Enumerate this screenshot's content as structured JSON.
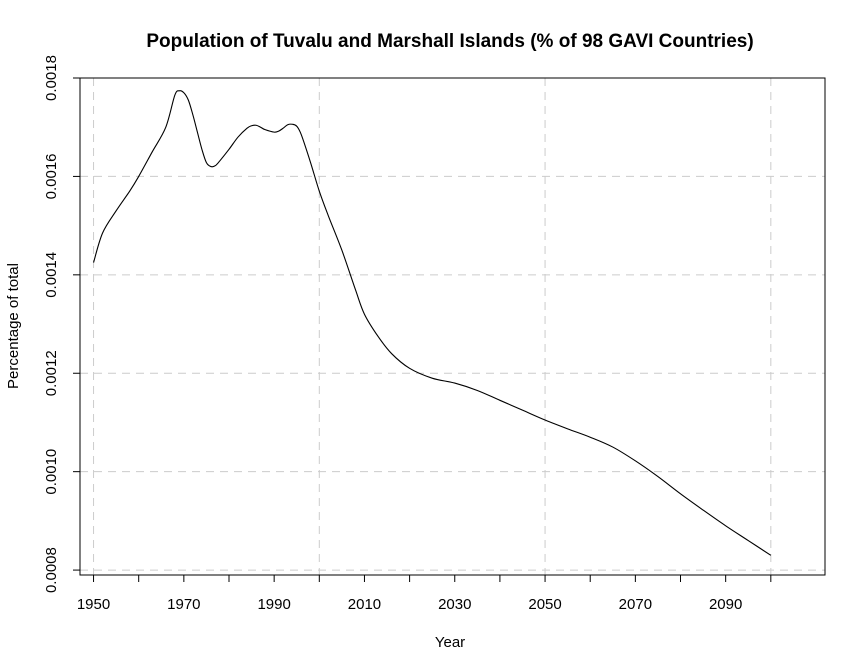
{
  "chart_data": {
    "type": "line",
    "title": "Population of Tuvalu and Marshall Islands (% of 98 GAVI Countries)",
    "xlabel": "Year",
    "ylabel": "Percentage of total",
    "xlim": [
      1947,
      2112
    ],
    "ylim": [
      0.00079,
      0.0018
    ],
    "x_ticks": [
      1950,
      1960,
      1970,
      1980,
      1990,
      2000,
      2010,
      2020,
      2030,
      2040,
      2050,
      2060,
      2070,
      2080,
      2090,
      2100
    ],
    "x_tick_labels": [
      "1950",
      "",
      "1970",
      "",
      "1990",
      "",
      "2010",
      "",
      "2030",
      "",
      "2050",
      "",
      "2070",
      "",
      "2090",
      ""
    ],
    "y_ticks": [
      0.0008,
      0.001,
      0.0012,
      0.0014,
      0.0016,
      0.0018
    ],
    "y_tick_labels": [
      "0.0008",
      "0.0010",
      "0.0012",
      "0.0014",
      "0.0016",
      "0.0018"
    ],
    "grid_x": [
      1950,
      2000,
      2050,
      2100
    ],
    "grid_y": [
      0.0008,
      0.001,
      0.0012,
      0.0014,
      0.0016,
      0.0018
    ],
    "grid": true,
    "series": [
      {
        "color": "#000000",
        "x": [
          1950,
          1952,
          1955,
          1958,
          1960,
          1963,
          1966,
          1968,
          1969,
          1970,
          1971,
          1972,
          1973,
          1974,
          1975,
          1976,
          1977,
          1978,
          1980,
          1982,
          1984,
          1985,
          1986,
          1987,
          1988,
          1990,
          1991,
          1992,
          1993,
          1994,
          1995,
          1996,
          1998,
          2000,
          2002,
          2005,
          2008,
          2010,
          2013,
          2016,
          2020,
          2025,
          2030,
          2035,
          2040,
          2045,
          2050,
          2055,
          2060,
          2065,
          2070,
          2075,
          2080,
          2085,
          2090,
          2095,
          2100
        ],
        "y": [
          0.001425,
          0.001485,
          0.00153,
          0.00157,
          0.0016,
          0.00165,
          0.0017,
          0.001765,
          0.001774,
          0.00177,
          0.001755,
          0.001725,
          0.00169,
          0.001655,
          0.001628,
          0.00162,
          0.001622,
          0.001632,
          0.001655,
          0.00168,
          0.001698,
          0.001703,
          0.001704,
          0.0017,
          0.001695,
          0.00169,
          0.001692,
          0.001698,
          0.001705,
          0.001706,
          0.001702,
          0.001685,
          0.00163,
          0.00157,
          0.00152,
          0.00145,
          0.00137,
          0.00132,
          0.001275,
          0.00124,
          0.00121,
          0.00119,
          0.00118,
          0.001165,
          0.001145,
          0.001125,
          0.001105,
          0.001087,
          0.00107,
          0.00105,
          0.001022,
          0.00099,
          0.000955,
          0.000922,
          0.00089,
          0.00086,
          0.00083
        ]
      }
    ]
  }
}
